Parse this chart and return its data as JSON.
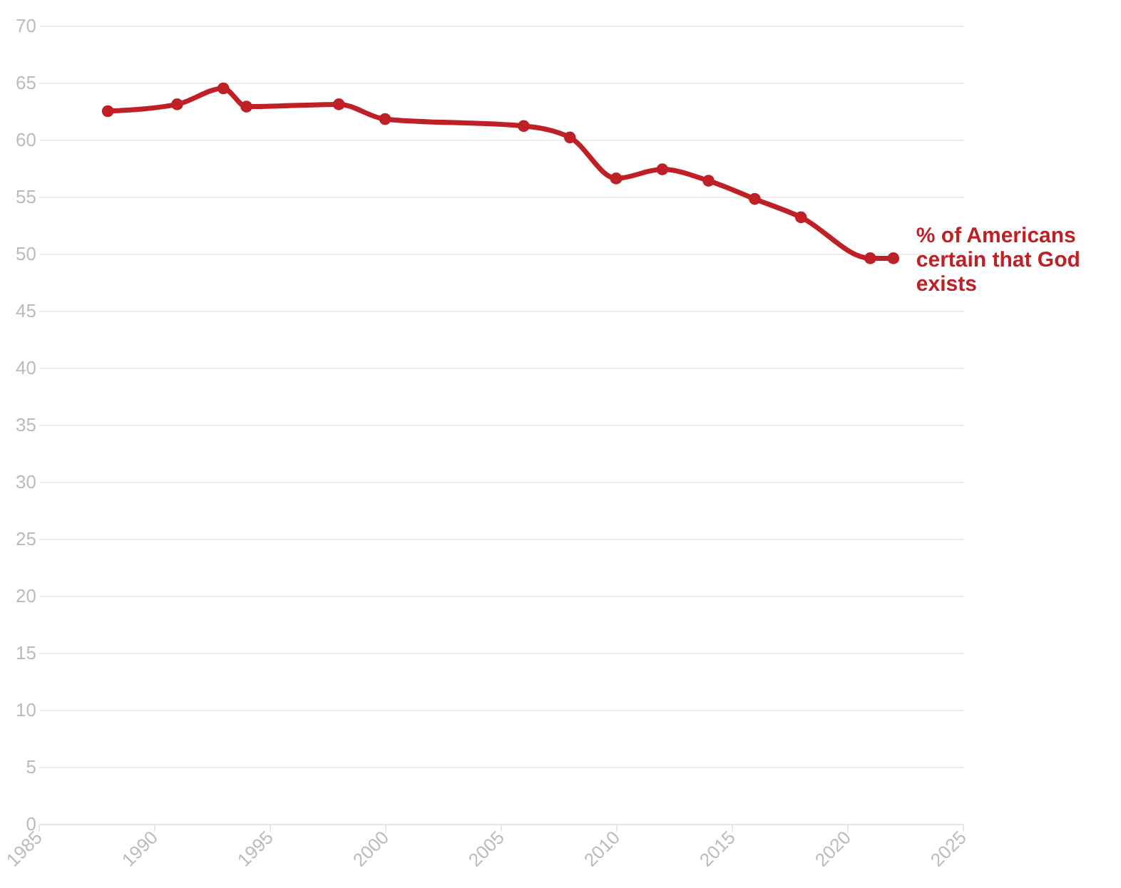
{
  "chart_data": {
    "type": "line",
    "x": [
      1988,
      1991,
      1993,
      1994,
      1998,
      2000,
      2006,
      2008,
      2010,
      2012,
      2014,
      2016,
      2018,
      2021,
      2022
    ],
    "series": [
      {
        "name": "% of Americans certain that God exists",
        "color": "#be2026",
        "values": [
          62.5,
          63.1,
          64.5,
          62.9,
          63.1,
          61.8,
          61.2,
          60.2,
          56.6,
          57.4,
          56.4,
          54.8,
          53.2,
          49.6,
          49.6
        ]
      }
    ],
    "xlim": [
      1985,
      2025
    ],
    "xticks": [
      1985,
      1990,
      1995,
      2000,
      2005,
      2010,
      2015,
      2020,
      2025
    ],
    "ylim": [
      0,
      70
    ],
    "yticks": [
      0,
      5,
      10,
      15,
      20,
      25,
      30,
      35,
      40,
      45,
      50,
      55,
      60,
      65,
      70
    ],
    "grid": "y",
    "marker": "circle",
    "line_style": "solid",
    "legend": false
  }
}
